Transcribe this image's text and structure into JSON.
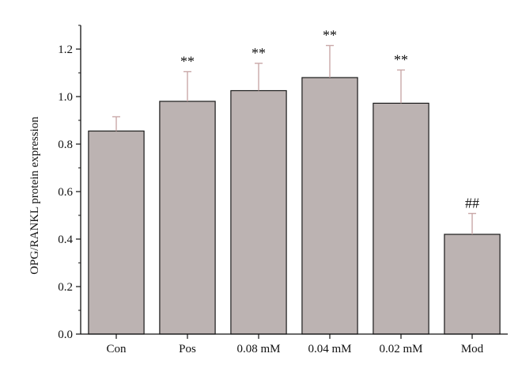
{
  "chart_data": {
    "type": "bar",
    "title": "",
    "xlabel": "",
    "ylabel": "OPG/RANKL protein expression",
    "ylim": [
      0,
      1.3
    ],
    "yticks": [
      "0.0",
      "0.2",
      "0.4",
      "0.6",
      "0.8",
      "1.0",
      "1.2"
    ],
    "grid": false,
    "categories": [
      "Con",
      "Pos",
      "0.08 mM",
      "0.04 mM",
      "0.02 mM",
      "Mod"
    ],
    "values": [
      0.855,
      0.98,
      1.025,
      1.08,
      0.972,
      0.42
    ],
    "errors": [
      0.06,
      0.125,
      0.115,
      0.135,
      0.14,
      0.088
    ],
    "annotations": [
      "",
      "**",
      "**",
      "**",
      "**",
      "##"
    ],
    "colors": {
      "bar": "#bcb3b2",
      "bar_edge": "#1a1a1a",
      "error": "#c9a8a8",
      "axis": "#111111"
    }
  }
}
